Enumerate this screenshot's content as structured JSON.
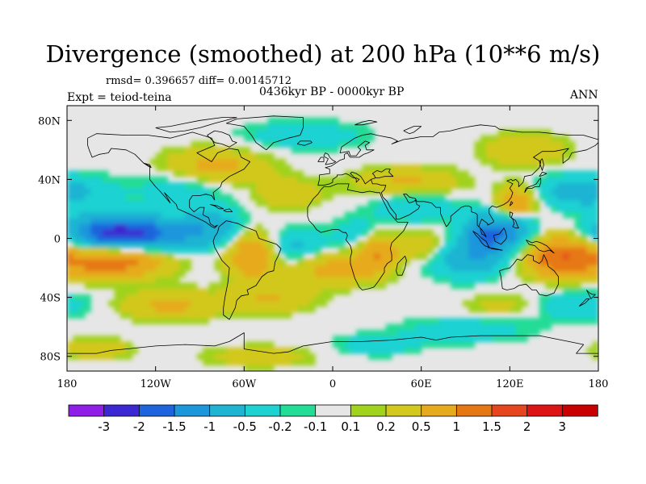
{
  "chart_data": {
    "type": "heatmap",
    "title": "Divergence (smoothed) at 200 hPa (10**6 m/s)",
    "stats": "rmsd= 0.396657 diff= 0.00145712",
    "experiment": "Expt = teiod-teina",
    "period": "0436kyr BP - 0000kyr BP",
    "season": "ANN",
    "x_range": [
      -180,
      180
    ],
    "y_range": [
      -90,
      90
    ],
    "x_ticks": [
      {
        "value": -180,
        "label": "180"
      },
      {
        "value": -120,
        "label": "120W"
      },
      {
        "value": -60,
        "label": "60W"
      },
      {
        "value": 0,
        "label": "0"
      },
      {
        "value": 60,
        "label": "60E"
      },
      {
        "value": 120,
        "label": "120E"
      },
      {
        "value": 180,
        "label": "180"
      }
    ],
    "y_ticks": [
      {
        "value": 80,
        "label": "80N"
      },
      {
        "value": 40,
        "label": "40N"
      },
      {
        "value": 0,
        "label": "0"
      },
      {
        "value": -40,
        "label": "40S"
      },
      {
        "value": -80,
        "label": "80S"
      }
    ],
    "colorbar": {
      "levels": [
        "-3",
        "-2",
        "-1.5",
        "-1",
        "-0.5",
        "-0.2",
        "-0.1",
        "0.1",
        "0.2",
        "0.5",
        "1",
        "1.5",
        "2",
        "3"
      ],
      "colors": [
        "#8f1ee6",
        "#3c28d2",
        "#1e64dc",
        "#1e96dc",
        "#1eb4d2",
        "#1ed2d2",
        "#23dc96",
        "#e6e6e6",
        "#a0d21e",
        "#d2c81e",
        "#e6aa1e",
        "#e67814",
        "#e6461e",
        "#dc1414",
        "#c80000"
      ]
    },
    "field_features": [
      {
        "lon": -135,
        "lat": 3,
        "value": -1.6,
        "spread_lon": 30,
        "spread_lat": 8
      },
      {
        "lon": -150,
        "lat": 5,
        "value": -0.9,
        "spread_lon": 20,
        "spread_lat": 8
      },
      {
        "lon": -80,
        "lat": 8,
        "value": -0.7,
        "spread_lon": 16,
        "spread_lat": 9
      },
      {
        "lon": -25,
        "lat": -5,
        "value": -0.6,
        "spread_lon": 15,
        "spread_lat": 8
      },
      {
        "lon": 20,
        "lat": 3,
        "value": -0.5,
        "spread_lon": 12,
        "spread_lat": 8
      },
      {
        "lon": 105,
        "lat": 2,
        "value": -1.5,
        "spread_lon": 12,
        "spread_lat": 10
      },
      {
        "lon": 125,
        "lat": 10,
        "value": -1.1,
        "spread_lon": 10,
        "spread_lat": 10
      },
      {
        "lon": 90,
        "lat": -15,
        "value": -0.7,
        "spread_lon": 18,
        "spread_lat": 9
      },
      {
        "lon": 55,
        "lat": 22,
        "value": -0.5,
        "spread_lon": 20,
        "spread_lat": 8
      },
      {
        "lon": 170,
        "lat": 32,
        "value": -0.8,
        "spread_lon": 25,
        "spread_lat": 8
      },
      {
        "lon": -100,
        "lat": 35,
        "value": -0.4,
        "spread_lon": 25,
        "spread_lat": 9
      },
      {
        "lon": 160,
        "lat": -45,
        "value": -0.5,
        "spread_lon": 25,
        "spread_lat": 7
      },
      {
        "lon": -20,
        "lat": 70,
        "value": -0.4,
        "spread_lon": 30,
        "spread_lat": 7
      },
      {
        "lon": 90,
        "lat": -62,
        "value": -0.4,
        "spread_lon": 30,
        "spread_lat": 6
      },
      {
        "lon": -150,
        "lat": -15,
        "value": 1.4,
        "spread_lon": 25,
        "spread_lat": 8
      },
      {
        "lon": -55,
        "lat": -10,
        "value": 1.0,
        "spread_lon": 12,
        "spread_lat": 12
      },
      {
        "lon": 30,
        "lat": -8,
        "value": 1.0,
        "spread_lon": 10,
        "spread_lat": 10
      },
      {
        "lon": 0,
        "lat": -20,
        "value": 0.7,
        "spread_lon": 20,
        "spread_lat": 8
      },
      {
        "lon": 125,
        "lat": 22,
        "value": 1.4,
        "spread_lon": 10,
        "spread_lat": 9
      },
      {
        "lon": 155,
        "lat": -12,
        "value": 1.4,
        "spread_lon": 18,
        "spread_lat": 10
      },
      {
        "lon": -110,
        "lat": -45,
        "value": 0.6,
        "spread_lon": 25,
        "spread_lat": 7
      },
      {
        "lon": -80,
        "lat": 48,
        "value": 0.7,
        "spread_lon": 25,
        "spread_lat": 9
      },
      {
        "lon": 50,
        "lat": 38,
        "value": 0.6,
        "spread_lon": 25,
        "spread_lat": 7
      },
      {
        "lon": -30,
        "lat": 30,
        "value": 0.5,
        "spread_lon": 15,
        "spread_lat": 7
      },
      {
        "lon": 130,
        "lat": 60,
        "value": 0.5,
        "spread_lon": 20,
        "spread_lat": 8
      },
      {
        "lon": -40,
        "lat": -40,
        "value": 0.5,
        "spread_lon": 20,
        "spread_lat": 7
      },
      {
        "lon": 120,
        "lat": -45,
        "value": 0.4,
        "spread_lon": 20,
        "spread_lat": 6
      },
      {
        "lon": 60,
        "lat": -5,
        "value": 0.5,
        "spread_lon": 10,
        "spread_lat": 7
      },
      {
        "lon": -160,
        "lat": -75,
        "value": 0.5,
        "spread_lon": 15,
        "spread_lat": 5
      },
      {
        "lon": -50,
        "lat": -80,
        "value": 0.4,
        "spread_lon": 25,
        "spread_lat": 5
      },
      {
        "lon": 30,
        "lat": -72,
        "value": -0.4,
        "spread_lon": 20,
        "spread_lat": 5
      }
    ]
  }
}
